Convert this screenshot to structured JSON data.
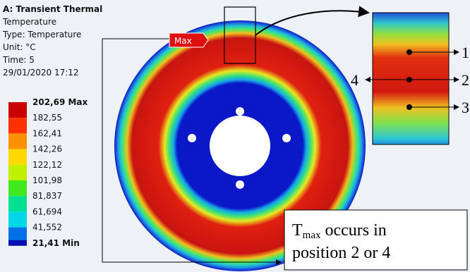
{
  "header": {
    "title": "A: Transient Thermal",
    "lines": [
      "Temperature",
      "Type: Temperature",
      "Unit: °C",
      "Time: 5",
      "29/01/2020 17:12"
    ]
  },
  "legend": {
    "labels": [
      "202,69 Max",
      "182,55",
      "162,41",
      "142,26",
      "122,12",
      "101,98",
      "81,837",
      "61,694",
      "41,552",
      "21,41 Min"
    ]
  },
  "probe": {
    "label": "Max"
  },
  "positions": [
    "1",
    "2",
    "3",
    "4"
  ],
  "annotation": {
    "symbol": "T",
    "subscript": "max",
    "line1": " occurs in",
    "line2": "position 2 or 4"
  }
}
